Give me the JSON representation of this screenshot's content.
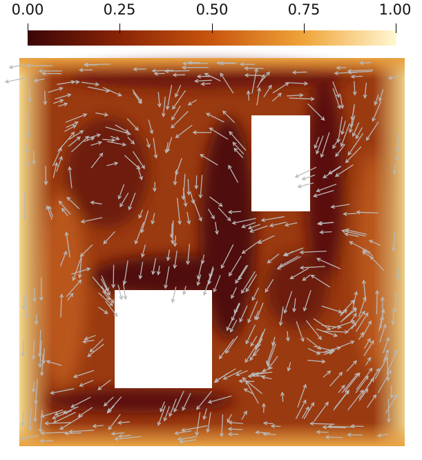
{
  "colorbar": {
    "ticks": [
      "0.00",
      "0.25",
      "0.50",
      "0.75",
      "1.00"
    ],
    "colors": [
      "#3b0607",
      "#8a2406",
      "#c9560e",
      "#f0a53a",
      "#fff8d2"
    ]
  },
  "field": {
    "colors": {
      "dark": "#5a0c0a",
      "mid": "#9a3a10",
      "bright": "#c96a1a",
      "edge": "#f2d88a",
      "vector": "#b9b9b9",
      "obstacle": "#ffffff"
    },
    "obstacles": [
      "upper-right-block",
      "lower-left-block"
    ]
  }
}
